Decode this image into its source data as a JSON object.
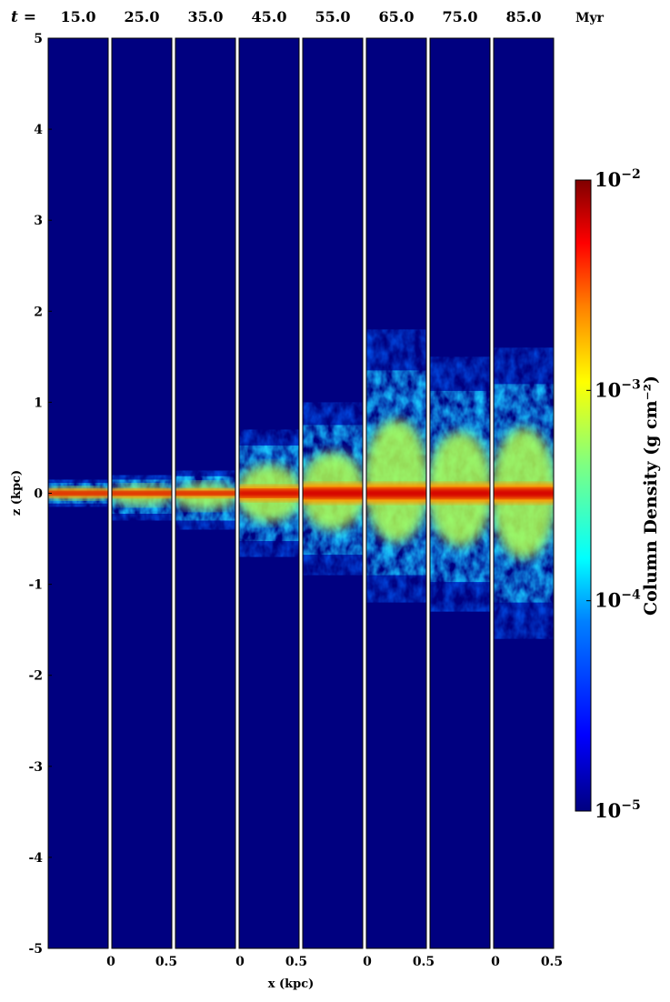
{
  "time_prefix": "t =",
  "time_unit": "Myr",
  "colorbar": {
    "label": "Column Density (g cm⁻²)",
    "ticks": [
      {
        "base": "10",
        "exp": "−2",
        "value": 0.01
      },
      {
        "base": "10",
        "exp": "−3",
        "value": 0.001
      },
      {
        "base": "10",
        "exp": "−4",
        "value": 0.0001
      },
      {
        "base": "10",
        "exp": "−5",
        "value": 1e-05
      }
    ],
    "scale": "log",
    "colormap": [
      "#000080",
      "#0000ff",
      "#0080ff",
      "#00ffff",
      "#80ff80",
      "#ffff00",
      "#ff8000",
      "#ff0000",
      "#800000"
    ]
  },
  "chart_data": {
    "type": "heatmap",
    "panel_times": [
      "15.0",
      "25.0",
      "35.0",
      "45.0",
      "55.0",
      "65.0",
      "75.0",
      "85.0"
    ],
    "ylabel": "z (kpc)",
    "xlabel": "x (kpc)",
    "ylim": [
      -5,
      5
    ],
    "xlim_per_panel": [
      0,
      0.5
    ],
    "y_ticks": [
      "5",
      "4",
      "3",
      "2",
      "1",
      "0",
      "-1",
      "-2",
      "-3",
      "-4",
      "-5"
    ],
    "x_ticks": [
      "0",
      "0.5",
      "0",
      "0.5",
      "0",
      "0.5",
      "0",
      "0.5"
    ],
    "gas_extent_kpc": [
      {
        "time": 15.0,
        "z_min": -0.15,
        "z_max": 0.15
      },
      {
        "time": 25.0,
        "z_min": -0.3,
        "z_max": 0.2
      },
      {
        "time": 35.0,
        "z_min": -0.4,
        "z_max": 0.25
      },
      {
        "time": 45.0,
        "z_min": -0.7,
        "z_max": 0.7
      },
      {
        "time": 55.0,
        "z_min": -0.9,
        "z_max": 1.0
      },
      {
        "time": 65.0,
        "z_min": -1.2,
        "z_max": 1.8
      },
      {
        "time": 75.0,
        "z_min": -1.3,
        "z_max": 1.5
      },
      {
        "time": 85.0,
        "z_min": -1.6,
        "z_max": 1.6
      }
    ]
  }
}
